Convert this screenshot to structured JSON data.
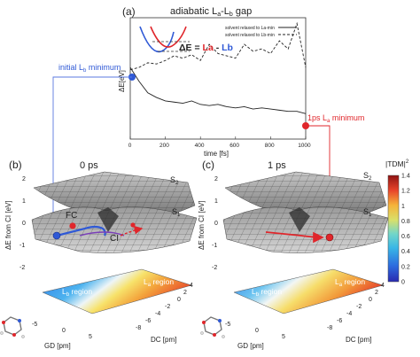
{
  "panel_a": {
    "label": "(a)",
    "title": "adiabatic L",
    "title_sub_a": "a",
    "title_mid": "-L",
    "title_sub_b": "b",
    "title_end": " gap",
    "ylabel": "ΔE[eV]",
    "xlabel": "time [fs]",
    "xticks": [
      "0",
      "200",
      "400",
      "600",
      "800",
      "1000"
    ],
    "legend": [
      {
        "text": "solvent relaxed to La-min",
        "style": "solid"
      },
      {
        "text": "solvent relaxed to Lb-min",
        "style": "dashed"
      }
    ],
    "inset_formula_prefix": "ΔE = ",
    "inset_formula_la": "La",
    "inset_formula_dash": " - ",
    "inset_formula_lb": "Lb",
    "callout_left_pre": "initial L",
    "callout_left_sub": "b",
    "callout_left_post": " minimum",
    "callout_right_pre": "1ps L",
    "callout_right_sub": "a",
    "callout_right_post": " minimum"
  },
  "chart_data": {
    "type": "line",
    "title": "adiabatic La-Lb gap",
    "xlabel": "time [fs]",
    "ylabel": "ΔE[eV]",
    "xlim": [
      0,
      1000
    ],
    "x": [
      0,
      50,
      100,
      150,
      200,
      250,
      300,
      350,
      400,
      450,
      500,
      550,
      600,
      650,
      700,
      750,
      800,
      850,
      900,
      950,
      1000
    ],
    "series": [
      {
        "name": "solvent relaxed to La-min",
        "values": [
          0.62,
          0.5,
          0.4,
          0.36,
          0.33,
          0.32,
          0.31,
          0.33,
          0.3,
          0.29,
          0.3,
          0.28,
          0.27,
          0.28,
          0.26,
          0.27,
          0.26,
          0.25,
          0.24,
          0.24,
          0.22
        ]
      },
      {
        "name": "solvent relaxed to Lb-min",
        "values": [
          0.6,
          0.62,
          0.66,
          0.65,
          0.68,
          0.72,
          0.7,
          0.73,
          0.68,
          0.82,
          0.74,
          0.72,
          0.7,
          0.82,
          0.76,
          0.78,
          0.74,
          0.85,
          0.78,
          1.0,
          0.62
        ]
      }
    ]
  },
  "panel_b": {
    "label": "(b)",
    "title": "0 ps",
    "s2": "S",
    "s2_sub": "2",
    "s1": "S",
    "s1_sub": "1",
    "fc": "FC",
    "ci": "CI",
    "zlabel": "ΔE from CI [eV]",
    "zticks": [
      "2",
      "1",
      "0",
      "-1",
      "-2"
    ],
    "lb_region_pre": "L",
    "lb_region_sub": "b",
    "lb_region_post": " region",
    "la_region_pre": "L",
    "la_region_sub": "a",
    "la_region_post": " region",
    "gd_label": "GD [pm]",
    "gd_ticks": [
      "-5",
      "0",
      "5"
    ],
    "dc_label": "DC [pm]",
    "dc_ticks": [
      "4",
      "2",
      "0",
      "-2",
      "-4",
      "-6",
      "-8"
    ]
  },
  "panel_c": {
    "label": "(c)",
    "title": "1 ps",
    "s2": "S",
    "s2_sub": "2",
    "s1": "S",
    "s1_sub": "1",
    "zlabel": "ΔE from CI [eV]",
    "zticks": [
      "2",
      "1",
      "0",
      "-1",
      "-2"
    ],
    "lb_region_pre": "L",
    "lb_region_sub": "b",
    "lb_region_post": " region",
    "la_region_pre": "L",
    "la_region_sub": "a",
    "la_region_post": " region",
    "gd_label": "GD [pm]",
    "gd_ticks": [
      "-5",
      "0",
      "5"
    ],
    "dc_label": "DC [pm]",
    "dc_ticks": [
      "4",
      "2",
      "0",
      "-2",
      "-4",
      "-6",
      "-8"
    ]
  },
  "colorbar": {
    "label": "|TDM|",
    "label_sup": "2",
    "ticks": [
      "1.4",
      "1.2",
      "1",
      "0.8",
      "0.6",
      "0.4",
      "0.2",
      "0"
    ]
  },
  "colors": {
    "lb_blue": "#2f59d6",
    "la_red": "#e0262b",
    "surface_grey": "#8c8c8c"
  }
}
